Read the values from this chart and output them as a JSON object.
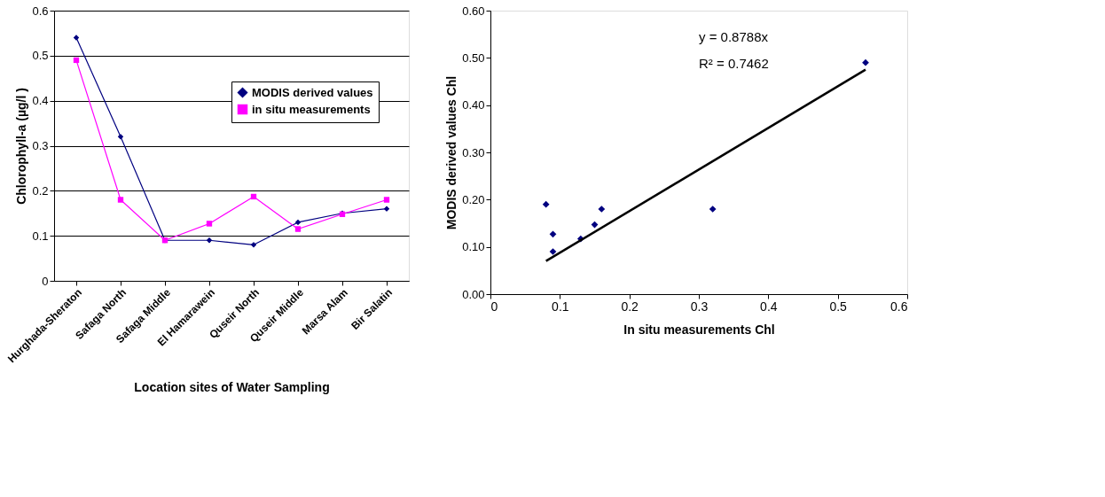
{
  "chart_data": [
    {
      "type": "line",
      "xlabel": "Location sites of Water Sampling",
      "ylabel": "Chlorophyll-a (µg/l )",
      "categories": [
        "Hurghada-Sheraton",
        "Safaga North",
        "Safaga Middle",
        "El Hamarawein",
        "Quseir North",
        "Quseir Middle",
        "Marsa Alam",
        "Bir Salatin"
      ],
      "series": [
        {
          "name": "MODIS derived values",
          "color": "#000080",
          "marker": "diamond",
          "values": [
            0.54,
            0.32,
            0.09,
            0.09,
            0.08,
            0.13,
            0.15,
            0.16
          ]
        },
        {
          "name": "in situ measurements",
          "color": "#ff00ff",
          "marker": "square",
          "values": [
            0.49,
            0.18,
            0.09,
            0.127,
            0.187,
            0.115,
            0.148,
            0.18
          ]
        }
      ],
      "ylim": [
        0,
        0.6
      ],
      "yticks": [
        0,
        0.1,
        0.2,
        0.3,
        0.4,
        0.5,
        0.6
      ],
      "grid": "y",
      "legend": "right"
    },
    {
      "type": "scatter",
      "xlabel": "In situ measurements Chl",
      "ylabel": "MODIS derived values Chl",
      "series": [
        {
          "type": "scatter",
          "color": "#000080",
          "marker": "diamond",
          "x": [
            0.08,
            0.09,
            0.09,
            0.13,
            0.15,
            0.16,
            0.32,
            0.54
          ],
          "values": [
            0.19,
            0.127,
            0.09,
            0.117,
            0.147,
            0.18,
            0.18,
            0.49
          ]
        },
        {
          "type": "line",
          "color": "#000000",
          "x": [
            0.08,
            0.54
          ],
          "values": [
            0.07,
            0.475
          ]
        }
      ],
      "xlim": [
        0,
        0.6
      ],
      "xticks": [
        0,
        0.1,
        0.2,
        0.3,
        0.4,
        0.5,
        0.6
      ],
      "ylim": [
        0,
        0.6
      ],
      "yticks": [
        {
          "value": 0,
          "label": "0.00"
        },
        {
          "value": 0.1,
          "label": "0.10"
        },
        {
          "value": 0.2,
          "label": "0.20"
        },
        {
          "value": 0.3,
          "label": "0.30"
        },
        {
          "value": 0.4,
          "label": "0.40"
        },
        {
          "value": 0.5,
          "label": "0.50"
        },
        {
          "value": 0.6,
          "label": "0.60"
        }
      ],
      "annotations": [
        "y = 0.8788x",
        "R² = 0.7462"
      ]
    }
  ]
}
